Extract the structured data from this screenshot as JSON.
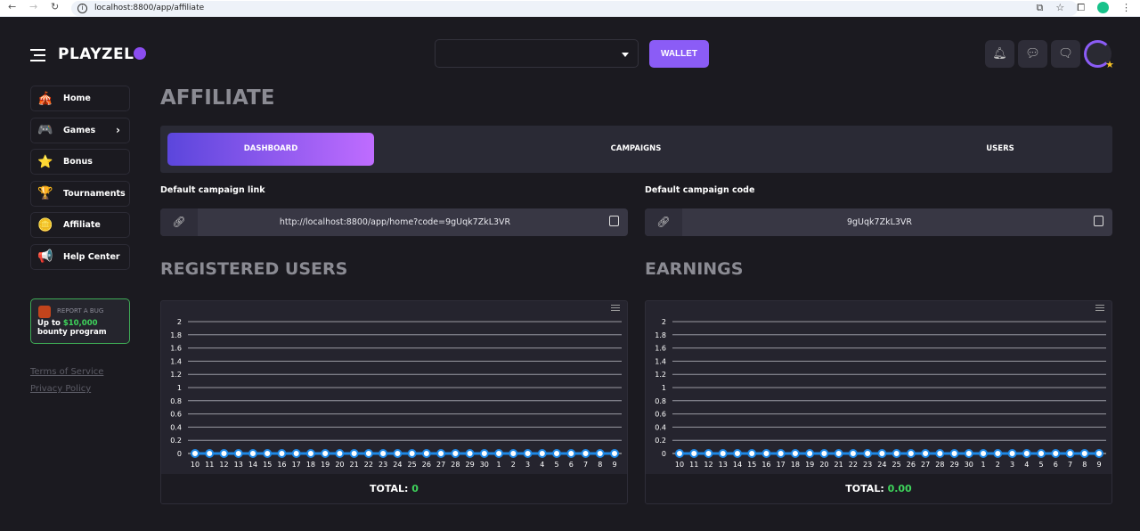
{
  "browser": {
    "url": "localhost:8800/app/affiliate"
  },
  "header": {
    "logo": "PLAYZEL",
    "wallet_label": "WALLET",
    "icons": [
      "bell-icon",
      "chat-icon",
      "messages-icon"
    ]
  },
  "sidebar": {
    "items": [
      {
        "label": "Home",
        "icon": "🎪"
      },
      {
        "label": "Games",
        "icon": "🎮",
        "chevron": "›"
      },
      {
        "label": "Bonus",
        "icon": "⭐"
      },
      {
        "label": "Tournaments",
        "icon": "🏆"
      },
      {
        "label": "Affiliate",
        "icon": "🪙"
      },
      {
        "label": "Help Center",
        "icon": "📢"
      }
    ],
    "bug": {
      "title": "REPORT A BUG",
      "pre": "Up to ",
      "amount": "$10,000",
      "post": " bounty program"
    },
    "links": [
      "Terms of Service",
      "Privacy Policy"
    ]
  },
  "main": {
    "title": "AFFILIATE",
    "tabs": [
      "DASHBOARD",
      "CAMPAIGNS",
      "USERS"
    ],
    "link_label": "Default campaign link",
    "link_value": "http://localhost:8800/app/home?code=9gUqk7ZkL3VR",
    "code_label": "Default campaign code",
    "code_value": "9gUqk7ZkL3VR",
    "registered_title": "REGISTERED USERS",
    "earnings_title": "EARNINGS",
    "total_label": "TOTAL: ",
    "registered_total": "0",
    "earnings_total": "0.00"
  },
  "colors": {
    "accent": "#8b5cf6",
    "line": "#1e88e5",
    "total": "#3ed35b"
  },
  "chart_data": [
    {
      "type": "line",
      "categories": [
        "10",
        "11",
        "12",
        "13",
        "14",
        "15",
        "16",
        "17",
        "18",
        "19",
        "20",
        "21",
        "22",
        "23",
        "24",
        "25",
        "26",
        "27",
        "28",
        "29",
        "30",
        "1",
        "2",
        "3",
        "4",
        "5",
        "6",
        "7",
        "8",
        "9"
      ],
      "values": [
        0,
        0,
        0,
        0,
        0,
        0,
        0,
        0,
        0,
        0,
        0,
        0,
        0,
        0,
        0,
        0,
        0,
        0,
        0,
        0,
        0,
        0,
        0,
        0,
        0,
        0,
        0,
        0,
        0,
        0
      ],
      "yticks": [
        "0",
        "0.2",
        "0.4",
        "0.6",
        "0.8",
        "1",
        "1.2",
        "1.4",
        "1.6",
        "1.8",
        "2"
      ],
      "ylim": [
        0,
        2
      ],
      "grid": true
    },
    {
      "type": "line",
      "categories": [
        "10",
        "11",
        "12",
        "13",
        "14",
        "15",
        "16",
        "17",
        "18",
        "19",
        "20",
        "21",
        "22",
        "23",
        "24",
        "25",
        "26",
        "27",
        "28",
        "29",
        "30",
        "1",
        "2",
        "3",
        "4",
        "5",
        "6",
        "7",
        "8",
        "9"
      ],
      "values": [
        0,
        0,
        0,
        0,
        0,
        0,
        0,
        0,
        0,
        0,
        0,
        0,
        0,
        0,
        0,
        0,
        0,
        0,
        0,
        0,
        0,
        0,
        0,
        0,
        0,
        0,
        0,
        0,
        0,
        0
      ],
      "yticks": [
        "0",
        "0.2",
        "0.4",
        "0.6",
        "0.8",
        "1",
        "1.2",
        "1.4",
        "1.6",
        "1.8",
        "2"
      ],
      "ylim": [
        0,
        2
      ],
      "grid": true
    }
  ]
}
